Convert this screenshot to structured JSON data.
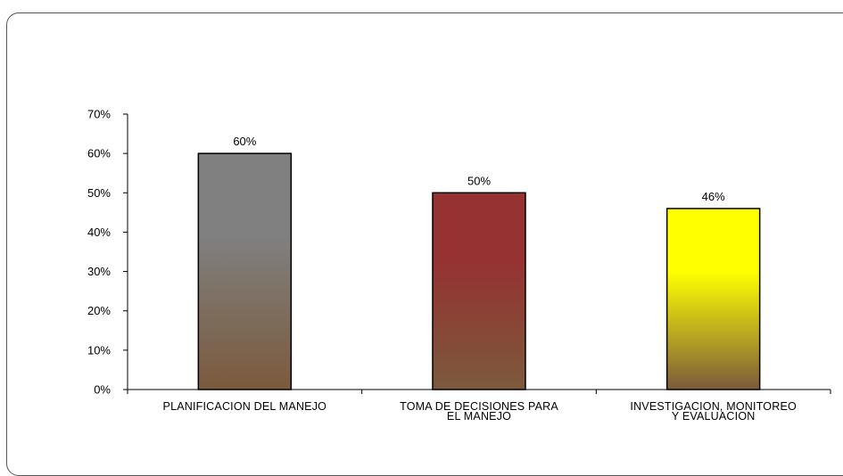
{
  "chart_data": {
    "type": "bar",
    "categories": [
      [
        "PLANIFICACION DEL MANEJO"
      ],
      [
        "TOMA DE DECISIONES PARA",
        "EL MANEJO"
      ],
      [
        "INVESTIGACION, MONITOREO",
        "Y EVALUACION"
      ]
    ],
    "values": [
      60,
      50,
      46
    ],
    "data_labels": [
      "60%",
      "50%",
      "46%"
    ],
    "ylim": [
      0,
      70
    ],
    "yticks": [
      "0%",
      "10%",
      "20%",
      "30%",
      "40%",
      "50%",
      "60%",
      "70%"
    ],
    "xlabel": "",
    "ylabel": "",
    "grid": false,
    "colors": [
      {
        "top": "#808080",
        "bottom": "#7b5a3c"
      },
      {
        "top": "#963232",
        "bottom": "#7b5a3c"
      },
      {
        "top": "#ffff00",
        "bottom": "#7b5a3c"
      }
    ]
  }
}
